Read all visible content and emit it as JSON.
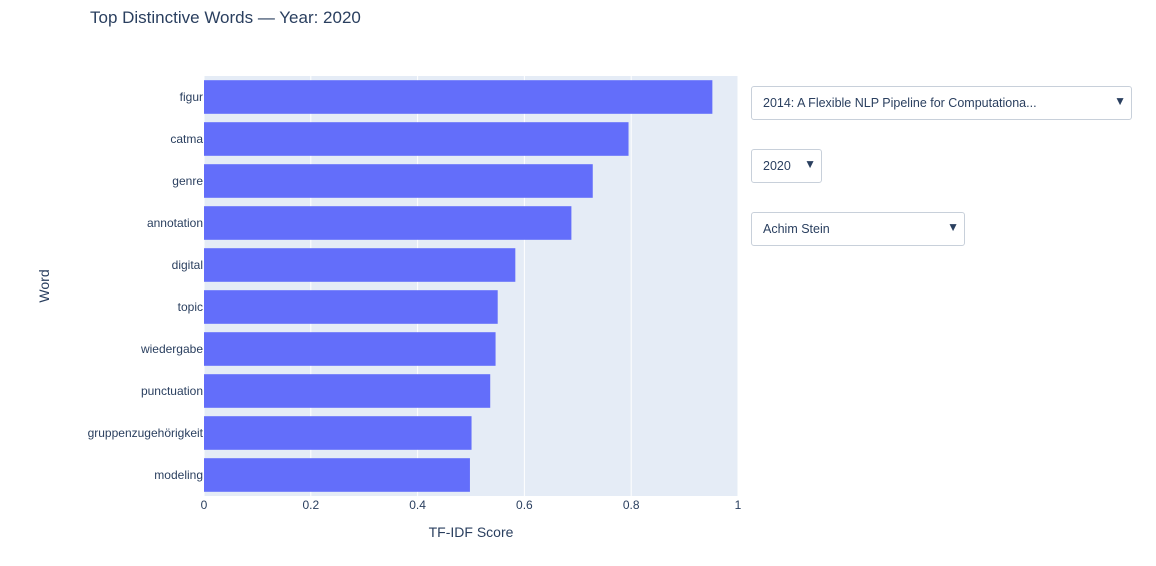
{
  "title": "Top Distinctive Words — Year: 2020",
  "dropdowns": {
    "paper": {
      "selected": "2014: A Flexible NLP Pipeline for Computationa...",
      "arrow": "▼"
    },
    "year": {
      "selected": "2020",
      "arrow": "▼"
    },
    "author": {
      "selected": "Achim Stein",
      "arrow": "▼"
    }
  },
  "colors": {
    "bar": "#636efa",
    "plot_bg": "#e5ecf6",
    "grid": "#ffffff",
    "text": "#2a3f5f"
  },
  "chart_data": {
    "type": "bar",
    "orientation": "horizontal",
    "title": "Top Distinctive Words — Year: 2020",
    "xlabel": "TF-IDF Score",
    "ylabel": "Word",
    "xlim": [
      0,
      1
    ],
    "xticks": [
      0,
      0.2,
      0.4,
      0.6,
      0.8,
      1
    ],
    "xtick_labels": [
      "0",
      "0.2",
      "0.4",
      "0.6",
      "0.8",
      "1"
    ],
    "grid": true,
    "categories": [
      "figur",
      "catma",
      "genre",
      "annotation",
      "digital",
      "topic",
      "wiedergabe",
      "punctuation",
      "gruppenzugehörigkeit",
      "modeling"
    ],
    "values": [
      0.952,
      0.795,
      0.728,
      0.688,
      0.583,
      0.55,
      0.546,
      0.536,
      0.501,
      0.498
    ]
  }
}
